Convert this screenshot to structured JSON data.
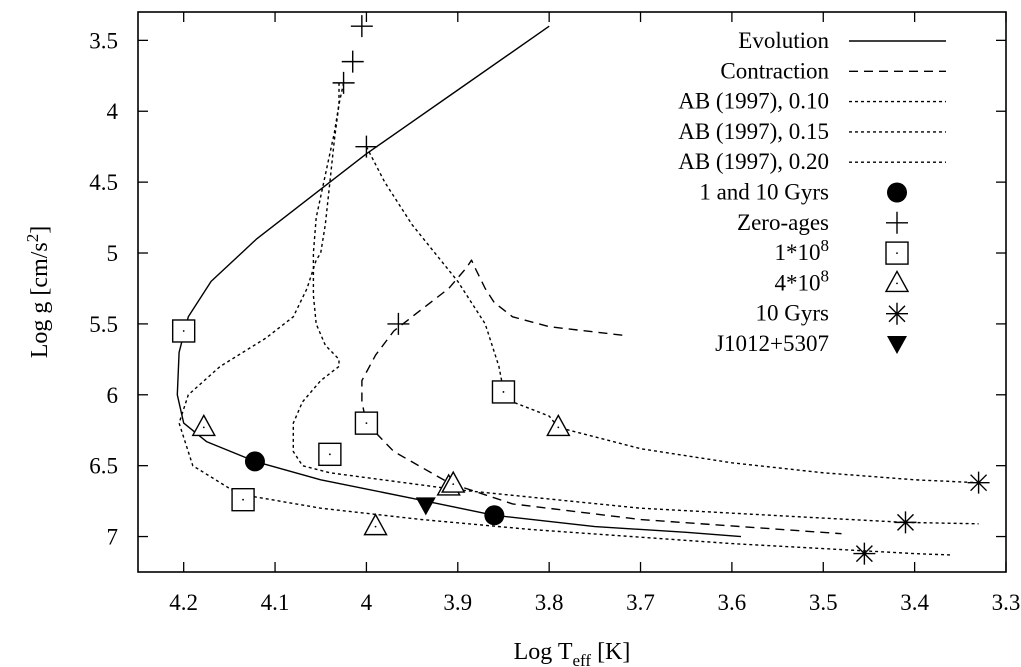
{
  "chart_data": {
    "type": "line",
    "title": "",
    "xlabel": {
      "main": "Log T",
      "sub": "eff",
      "tail": " [K]"
    },
    "ylabel": {
      "main": "Log g [cm/s",
      "sup": "2",
      "tail": "]"
    },
    "xlim": [
      4.25,
      3.3
    ],
    "ylim": [
      3.3,
      7.25
    ],
    "x_reversed": true,
    "y_reversed": true,
    "x_ticks": [
      "4.2",
      "4.1",
      "4",
      "3.9",
      "3.8",
      "3.7",
      "3.6",
      "3.5",
      "3.4",
      "3.3"
    ],
    "y_ticks": [
      "3.5",
      "4",
      "4.5",
      "5",
      "5.5",
      "6",
      "6.5",
      "7"
    ],
    "legend_position": "top-right",
    "series": [
      {
        "name": "Evolution",
        "style": "solid",
        "color": "#000000",
        "x": [
          3.8,
          3.9,
          4.0,
          4.06,
          4.12,
          4.17,
          4.195,
          4.205,
          4.207,
          4.2,
          4.175,
          4.122,
          4.05,
          3.95,
          3.86,
          3.75,
          3.65,
          3.59
        ],
        "y": [
          3.4,
          3.85,
          4.3,
          4.6,
          4.9,
          5.2,
          5.45,
          5.7,
          6.0,
          6.2,
          6.33,
          6.47,
          6.6,
          6.73,
          6.85,
          6.93,
          6.97,
          7.0
        ]
      },
      {
        "name": "Contraction",
        "style": "dashed",
        "color": "#000000",
        "x": [
          3.72,
          3.8,
          3.84,
          3.86,
          3.87,
          3.88,
          3.885,
          3.89,
          3.91,
          3.94,
          3.97,
          3.99,
          4.005,
          4.005,
          4.0,
          3.97,
          3.91,
          3.84,
          3.7,
          3.59,
          3.48
        ],
        "y": [
          5.58,
          5.52,
          5.45,
          5.35,
          5.25,
          5.12,
          5.05,
          5.1,
          5.25,
          5.4,
          5.55,
          5.72,
          5.9,
          6.05,
          6.2,
          6.4,
          6.62,
          6.77,
          6.88,
          6.93,
          6.98
        ]
      },
      {
        "name": "AB (1997), 0.10",
        "style": "dotted",
        "color": "#000000",
        "x": [
          4.03,
          4.03,
          4.035,
          4.04,
          4.045,
          4.05,
          4.055,
          4.06,
          4.065,
          4.08,
          4.11,
          4.16,
          4.195,
          4.205,
          4.19,
          4.14,
          4.05,
          3.94,
          3.82,
          3.6,
          3.4,
          3.36
        ],
        "y": [
          3.8,
          3.95,
          4.2,
          4.5,
          4.8,
          5.0,
          5.05,
          5.15,
          5.25,
          5.45,
          5.6,
          5.8,
          6.0,
          6.2,
          6.5,
          6.7,
          6.8,
          6.88,
          6.95,
          7.05,
          7.12,
          7.13
        ]
      },
      {
        "name": "AB (1997), 0.15",
        "style": "dotted",
        "color": "#000000",
        "x": [
          4.025,
          4.03,
          4.035,
          4.045,
          4.055,
          4.058,
          4.058,
          4.055,
          4.045,
          4.03,
          4.03,
          4.05,
          4.07,
          4.08,
          4.08,
          4.07,
          4.04,
          3.9,
          3.7,
          3.5,
          3.41,
          3.33
        ],
        "y": [
          3.8,
          3.95,
          4.15,
          4.45,
          4.75,
          5.0,
          5.3,
          5.5,
          5.65,
          5.75,
          5.8,
          5.9,
          6.05,
          6.2,
          6.4,
          6.5,
          6.55,
          6.67,
          6.8,
          6.87,
          6.9,
          6.91
        ]
      },
      {
        "name": "AB (1997), 0.20",
        "style": "dotted",
        "color": "#000000",
        "x": [
          4.0,
          3.98,
          3.95,
          3.9,
          3.87,
          3.855,
          3.85,
          3.84,
          3.8,
          3.79,
          3.7,
          3.6,
          3.5,
          3.4,
          3.33
        ],
        "y": [
          4.25,
          4.5,
          4.8,
          5.2,
          5.5,
          5.8,
          5.97,
          6.05,
          6.15,
          6.23,
          6.38,
          6.48,
          6.55,
          6.6,
          6.62
        ]
      }
    ],
    "markers": [
      {
        "name": "1 and 10 Gyrs",
        "symbol": "filled-circle",
        "points": [
          [
            4.122,
            6.47
          ],
          [
            3.86,
            6.85
          ]
        ]
      },
      {
        "name": "Zero-ages",
        "symbol": "plus",
        "points": [
          [
            4.005,
            3.4
          ],
          [
            4.015,
            3.65
          ],
          [
            4.025,
            3.8
          ],
          [
            4.0,
            4.25
          ],
          [
            3.965,
            5.5
          ]
        ]
      },
      {
        "name": "1*10",
        "sup": "8",
        "symbol": "open-square",
        "points": [
          [
            4.2,
            5.55
          ],
          [
            4.135,
            6.74
          ],
          [
            4.04,
            6.42
          ],
          [
            4.0,
            6.2
          ],
          [
            3.85,
            5.98
          ]
        ]
      },
      {
        "name": "4*10",
        "sup": "8",
        "symbol": "open-triangle",
        "points": [
          [
            4.178,
            6.23
          ],
          [
            3.99,
            6.93
          ],
          [
            3.91,
            6.65
          ],
          [
            3.905,
            6.63
          ],
          [
            3.79,
            6.23
          ]
        ]
      },
      {
        "name": "10 Gyrs",
        "symbol": "asterisk",
        "points": [
          [
            3.455,
            7.12
          ],
          [
            3.41,
            6.9
          ],
          [
            3.33,
            6.62
          ]
        ]
      },
      {
        "name": "J1012+5307",
        "symbol": "filled-triangle-down",
        "points": [
          [
            3.935,
            6.78
          ]
        ]
      }
    ]
  }
}
